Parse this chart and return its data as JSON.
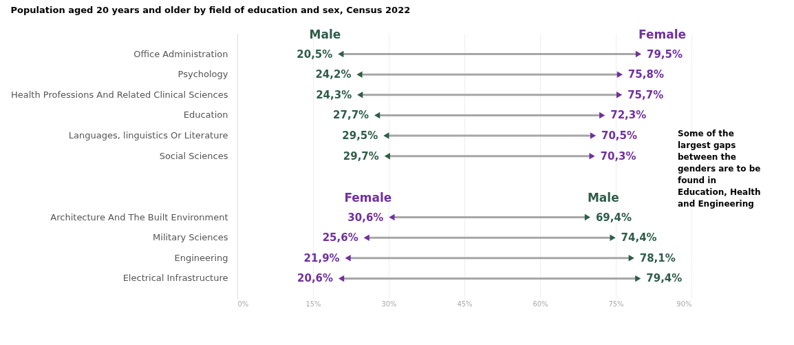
{
  "chart_data": {
    "type": "scatter",
    "title": "Population aged 20 years and older by field of education and sex, Census 2022",
    "categories": [
      "Office Administration",
      "Psychology",
      "Health Professions And Related Clinical Sciences",
      "Education",
      "Languages, linguistics Or Literature",
      "Social Sciences",
      null,
      null,
      "Architecture And The Built Environment",
      "Military Sciences",
      "Engineering",
      "Electrical Infrastructure"
    ],
    "series": [
      {
        "name": "Male",
        "color": "#2f5d4a",
        "values": [
          20.5,
          24.2,
          24.3,
          27.7,
          29.5,
          29.7,
          null,
          null,
          69.4,
          74.4,
          78.1,
          79.4
        ],
        "value_labels": [
          "20,5%",
          "24,2%",
          "24,3%",
          "27,7%",
          "29,5%",
          "29,7%",
          null,
          null,
          "69,4%",
          "74,4%",
          "78,1%",
          "79,4%"
        ]
      },
      {
        "name": "Female",
        "color": "#7030a0",
        "values": [
          79.5,
          75.8,
          75.7,
          72.3,
          70.5,
          70.3,
          null,
          null,
          30.6,
          25.6,
          21.9,
          20.6
        ],
        "value_labels": [
          "79,5%",
          "75,8%",
          "75,7%",
          "72,3%",
          "70,5%",
          "70,3%",
          null,
          null,
          "30,6%",
          "25,6%",
          "21,9%",
          "20,6%"
        ]
      }
    ],
    "orientation": "horizontal",
    "xlim": [
      0,
      90
    ],
    "xticks": [
      {
        "value": 0,
        "label": "0%"
      },
      {
        "value": 15,
        "label": "15%"
      },
      {
        "value": 30,
        "label": "30%"
      },
      {
        "value": 45,
        "label": "45%"
      },
      {
        "value": 60,
        "label": "60%"
      },
      {
        "value": 75,
        "label": "75%"
      },
      {
        "value": 90,
        "label": "90%"
      }
    ],
    "grid": "x",
    "annotations": [
      "Some of the largest gaps between the genders are to be found in Education, Health and Engineering"
    ]
  }
}
